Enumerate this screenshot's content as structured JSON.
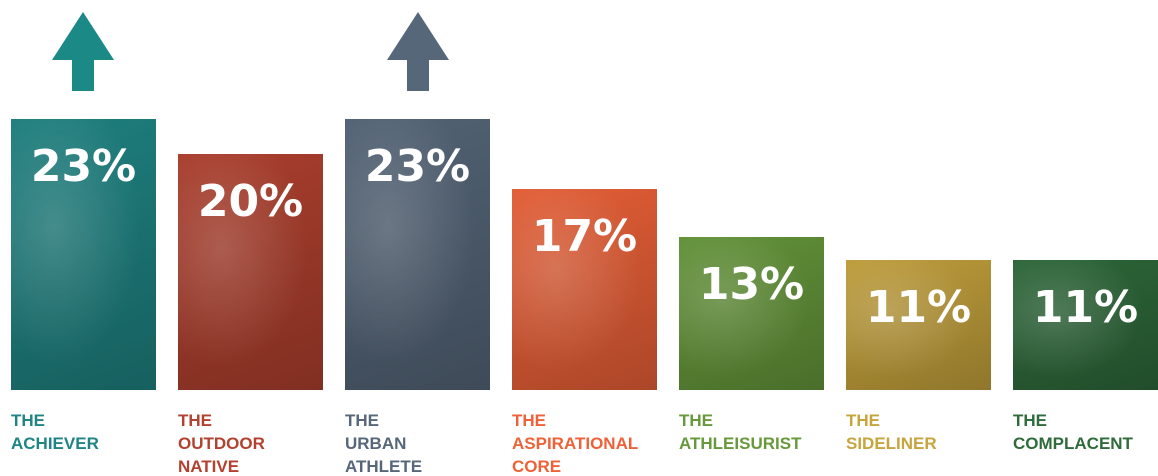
{
  "chart_data": {
    "type": "bar",
    "categories": [
      "THE\nACHIEVER",
      "THE\nOUTDOOR\nNATIVE",
      "THE\nURBAN\nATHLETE",
      "THE\nASPIRATIONAL\nCORE",
      "THE\nATHLEISURIST",
      "THE\nSIDELINER",
      "THE\nCOMPLACENT"
    ],
    "values": [
      23,
      20,
      23,
      17,
      13,
      11,
      11
    ],
    "value_labels": [
      "23%",
      "20%",
      "23%",
      "17%",
      "13%",
      "11%",
      "11%"
    ],
    "colors": [
      "#1f8584",
      "#b2412f",
      "#56677a",
      "#ee6238",
      "#67993b",
      "#c7a43d",
      "#2f6b3b"
    ]
  }
}
